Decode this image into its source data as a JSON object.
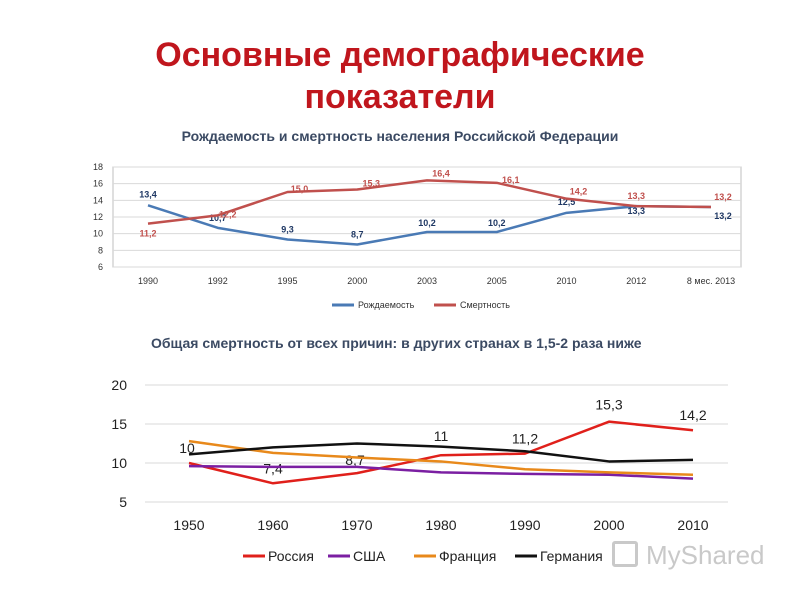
{
  "title_line1": "Основные демографические",
  "title_line2": "показатели",
  "watermark": "MyShared",
  "chart_data": [
    {
      "type": "line",
      "title": "Рождаемость и смертность населения Российской Федерации",
      "categories": [
        "1990",
        "1992",
        "1995",
        "2000",
        "2003",
        "2005",
        "2010",
        "2012",
        "8 мес. 2013"
      ],
      "ylim": [
        6,
        18
      ],
      "yticks": [
        6,
        8,
        10,
        12,
        14,
        16,
        18
      ],
      "grid": true,
      "legend": "bottom",
      "series": [
        {
          "name": "Рождаемость",
          "color": "#4a7ab5",
          "values": [
            13.4,
            10.7,
            9.3,
            8.7,
            10.2,
            10.2,
            12.5,
            13.3,
            13.2
          ],
          "labels": [
            "13,4",
            "10,7",
            "9,3",
            "8,7",
            "10,2",
            "10,2",
            "12,5",
            "13,3",
            "13,2"
          ]
        },
        {
          "name": "Смертность",
          "color": "#c0504d",
          "values": [
            11.2,
            12.2,
            15.0,
            15.3,
            16.4,
            16.1,
            14.2,
            13.3,
            13.2
          ],
          "labels": [
            "11,2",
            "12,2",
            "15,0",
            "15,3",
            "16,4",
            "16,1",
            "14,2",
            "13,3",
            "13,2"
          ]
        }
      ]
    },
    {
      "type": "line",
      "title": "Общая смертность от всех причин: в других странах  в 1,5-2 раза ниже",
      "categories": [
        "1950",
        "1960",
        "1970",
        "1980",
        "1990",
        "2000",
        "2010"
      ],
      "ylim": [
        5,
        20
      ],
      "yticks": [
        5,
        10,
        15,
        20
      ],
      "grid": true,
      "legend": "bottom",
      "series": [
        {
          "name": "Россия",
          "color": "#e0201b",
          "values": [
            10,
            7.4,
            8.7,
            11,
            11.2,
            15.3,
            14.2
          ],
          "labels": [
            "10",
            "7,4",
            "8,7",
            "11",
            "11,2",
            "15,3",
            "14,2"
          ]
        },
        {
          "name": "США",
          "color": "#7b1fa2",
          "values": [
            9.6,
            9.5,
            9.5,
            8.8,
            8.6,
            8.5,
            8.0
          ],
          "labels": []
        },
        {
          "name": "Франция",
          "color": "#e8891b",
          "values": [
            12.8,
            11.3,
            10.7,
            10.2,
            9.2,
            8.8,
            8.5
          ],
          "labels": []
        },
        {
          "name": "Германия",
          "color": "#111111",
          "values": [
            11.1,
            12.0,
            12.5,
            12.1,
            11.5,
            10.2,
            10.4
          ],
          "labels": []
        }
      ]
    }
  ]
}
